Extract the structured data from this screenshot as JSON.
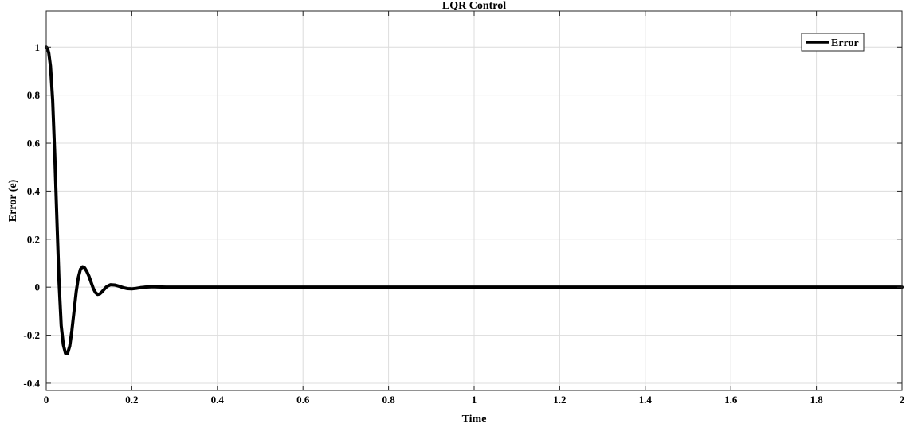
{
  "chart_data": {
    "type": "line",
    "title": "LQR Control",
    "xlabel": "Time",
    "ylabel": "Error (e)",
    "xlim": [
      0,
      2
    ],
    "ylim": [
      -0.43,
      1.15
    ],
    "x_ticks": [
      0,
      0.2,
      0.4,
      0.6,
      0.8,
      1,
      1.2,
      1.4,
      1.6,
      1.8,
      2
    ],
    "x_tick_labels": [
      "0",
      "0.2",
      "0.4",
      "0.6",
      "0.8",
      "1",
      "1.2",
      "1.4",
      "1.6",
      "1.8",
      "2"
    ],
    "y_ticks": [
      -0.4,
      -0.2,
      0,
      0.2,
      0.4,
      0.6,
      0.8,
      1
    ],
    "y_tick_labels": [
      "-0.4",
      "-0.2",
      "0",
      "0.2",
      "0.4",
      "0.6",
      "0.8",
      "1"
    ],
    "grid": true,
    "legend_position": "top-right",
    "series": [
      {
        "name": "Error",
        "color": "#000000",
        "x": [
          0,
          0.003,
          0.006,
          0.01,
          0.015,
          0.02,
          0.025,
          0.03,
          0.035,
          0.04,
          0.045,
          0.05,
          0.055,
          0.06,
          0.065,
          0.07,
          0.075,
          0.08,
          0.085,
          0.09,
          0.095,
          0.1,
          0.105,
          0.11,
          0.115,
          0.12,
          0.125,
          0.13,
          0.135,
          0.14,
          0.145,
          0.15,
          0.16,
          0.17,
          0.18,
          0.19,
          0.2,
          0.21,
          0.22,
          0.23,
          0.24,
          0.25,
          0.26,
          0.28,
          0.3,
          0.35,
          0.4,
          0.5,
          0.6,
          0.8,
          1.0,
          1.2,
          1.4,
          1.6,
          1.8,
          2.0
        ],
        "y": [
          1.0,
          0.995,
          0.975,
          0.92,
          0.78,
          0.55,
          0.28,
          0.02,
          -0.16,
          -0.24,
          -0.275,
          -0.275,
          -0.245,
          -0.18,
          -0.1,
          -0.02,
          0.04,
          0.075,
          0.085,
          0.08,
          0.065,
          0.045,
          0.02,
          -0.005,
          -0.022,
          -0.03,
          -0.028,
          -0.02,
          -0.01,
          0.0,
          0.006,
          0.01,
          0.009,
          0.004,
          -0.002,
          -0.006,
          -0.007,
          -0.005,
          -0.002,
          0.0,
          0.001,
          0.002,
          0.001,
          0.0,
          0.0,
          0.0,
          0.0,
          0.0,
          0.0,
          0.0,
          0.0,
          0.0,
          0.0,
          0.0,
          0.0,
          0.0
        ]
      }
    ]
  }
}
